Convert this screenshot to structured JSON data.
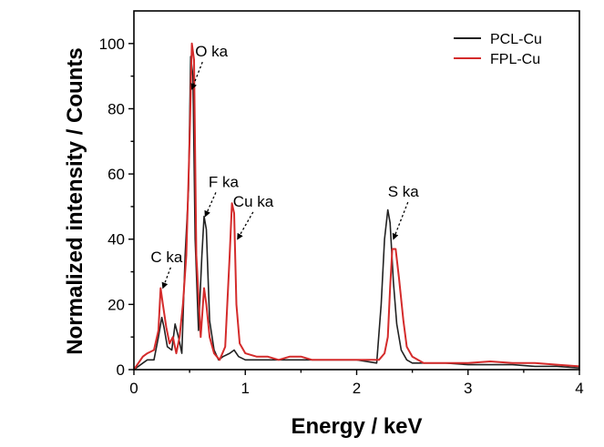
{
  "chart_data": {
    "type": "line",
    "title": "",
    "xlabel": "Energy / keV",
    "ylabel": "Normalized intensity / Counts",
    "xlim": [
      0,
      4
    ],
    "ylim": [
      0,
      110
    ],
    "xticks": [
      0,
      1,
      2,
      3,
      4
    ],
    "yticks": [
      0,
      20,
      40,
      60,
      80,
      100
    ],
    "grid": false,
    "legend_position": "top-right",
    "series": [
      {
        "name": "PCL-Cu",
        "color": "#222222",
        "x": [
          0.0,
          0.08,
          0.12,
          0.18,
          0.22,
          0.25,
          0.27,
          0.3,
          0.34,
          0.37,
          0.4,
          0.43,
          0.46,
          0.49,
          0.51,
          0.53,
          0.55,
          0.58,
          0.61,
          0.63,
          0.65,
          0.68,
          0.72,
          0.76,
          0.8,
          0.86,
          0.9,
          0.94,
          1.0,
          1.1,
          1.2,
          1.3,
          1.4,
          1.5,
          1.6,
          1.8,
          2.0,
          2.18,
          2.22,
          2.25,
          2.28,
          2.3,
          2.33,
          2.36,
          2.4,
          2.45,
          2.5,
          2.6,
          2.8,
          3.0,
          3.2,
          3.4,
          3.6,
          3.8,
          4.0
        ],
        "y": [
          0,
          2,
          3,
          3,
          10,
          16,
          13,
          7,
          6,
          14,
          10,
          5,
          35,
          55,
          96,
          90,
          40,
          12,
          35,
          47,
          43,
          15,
          6,
          3,
          4,
          5,
          6,
          4,
          3,
          3,
          3,
          3,
          3,
          3,
          3,
          3,
          3,
          2,
          20,
          40,
          49,
          45,
          27,
          14,
          6,
          3,
          2,
          2,
          2,
          1.5,
          1.5,
          1.5,
          1,
          1,
          0.5
        ]
      },
      {
        "name": "FPL-Cu",
        "color": "#d42b2b",
        "x": [
          0.0,
          0.08,
          0.12,
          0.18,
          0.22,
          0.24,
          0.26,
          0.29,
          0.32,
          0.35,
          0.38,
          0.41,
          0.44,
          0.47,
          0.5,
          0.52,
          0.54,
          0.56,
          0.6,
          0.63,
          0.65,
          0.68,
          0.72,
          0.77,
          0.82,
          0.86,
          0.88,
          0.9,
          0.92,
          0.95,
          1.0,
          1.1,
          1.2,
          1.3,
          1.4,
          1.5,
          1.6,
          1.8,
          2.0,
          2.2,
          2.25,
          2.28,
          2.3,
          2.32,
          2.35,
          2.38,
          2.42,
          2.45,
          2.5,
          2.6,
          2.8,
          3.0,
          3.2,
          3.4,
          3.6,
          3.8,
          4.0
        ],
        "y": [
          0,
          4,
          5,
          6,
          12,
          25,
          20,
          13,
          8,
          10,
          5,
          10,
          20,
          35,
          70,
          100,
          95,
          35,
          10,
          25,
          20,
          10,
          5,
          3,
          7,
          35,
          51,
          48,
          20,
          8,
          5,
          4,
          4,
          3,
          4,
          4,
          3,
          3,
          3,
          3,
          5,
          10,
          25,
          37,
          37,
          28,
          15,
          7,
          4,
          2,
          2,
          2,
          2.5,
          2,
          2,
          1.5,
          1
        ]
      }
    ],
    "annotations": [
      {
        "text": "C ka",
        "x": 0.15,
        "y": 33,
        "arrow_to": [
          0.26,
          25
        ]
      },
      {
        "text": "O ka",
        "x": 0.55,
        "y": 96,
        "arrow_to": [
          0.52,
          86
        ]
      },
      {
        "text": "F ka",
        "x": 0.67,
        "y": 56,
        "arrow_to": [
          0.64,
          47
        ]
      },
      {
        "text": "Cu ka",
        "x": 0.89,
        "y": 50,
        "arrow_to": [
          0.93,
          40
        ]
      },
      {
        "text": "S ka",
        "x": 2.28,
        "y": 53,
        "arrow_to": [
          2.33,
          40
        ]
      }
    ]
  }
}
